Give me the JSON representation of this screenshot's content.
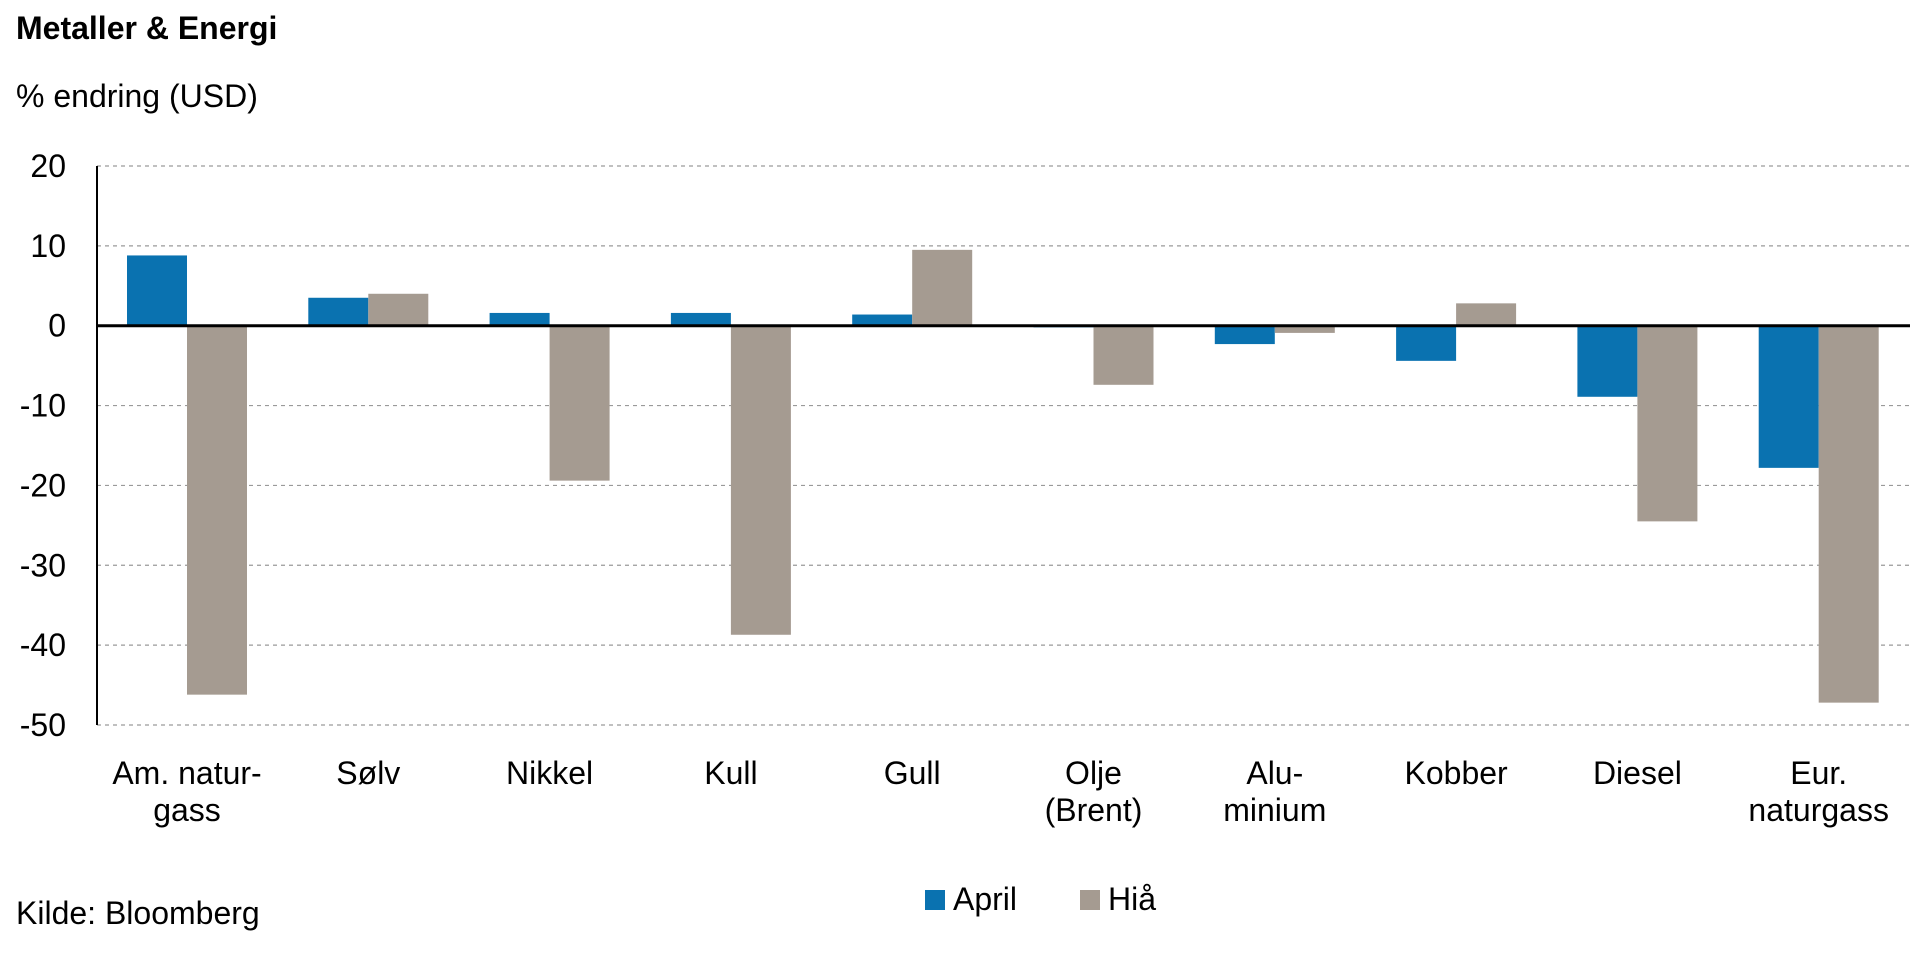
{
  "chart_data": {
    "type": "bar",
    "title": "Metaller & Energi",
    "subtitle": "% endring (USD)",
    "source": "Kilde: Bloomberg",
    "ylim": [
      -50,
      20
    ],
    "yticks": [
      20,
      10,
      0,
      -10,
      -20,
      -30,
      -40,
      -50
    ],
    "grid": true,
    "legend_position": "bottom-center",
    "categories": [
      [
        "Am. natur-",
        "gass"
      ],
      [
        "Sølv"
      ],
      [
        "Nikkel"
      ],
      [
        "Kull"
      ],
      [
        "Gull"
      ],
      [
        "Olje",
        "(Brent)"
      ],
      [
        "Alu-",
        "minium"
      ],
      [
        "Kobber"
      ],
      [
        "Diesel"
      ],
      [
        "Eur.",
        "naturgass"
      ]
    ],
    "series": [
      {
        "name": "April",
        "color": "#0a72b0",
        "values": [
          8.8,
          3.5,
          1.6,
          1.6,
          1.4,
          -0.2,
          -2.3,
          -4.4,
          -8.9,
          -17.8
        ]
      },
      {
        "name": "Hiå",
        "color": "#a59b91",
        "values": [
          -46.2,
          4.0,
          -19.4,
          -38.7,
          9.5,
          -7.4,
          -0.9,
          2.8,
          -24.5,
          -47.2
        ]
      }
    ]
  }
}
